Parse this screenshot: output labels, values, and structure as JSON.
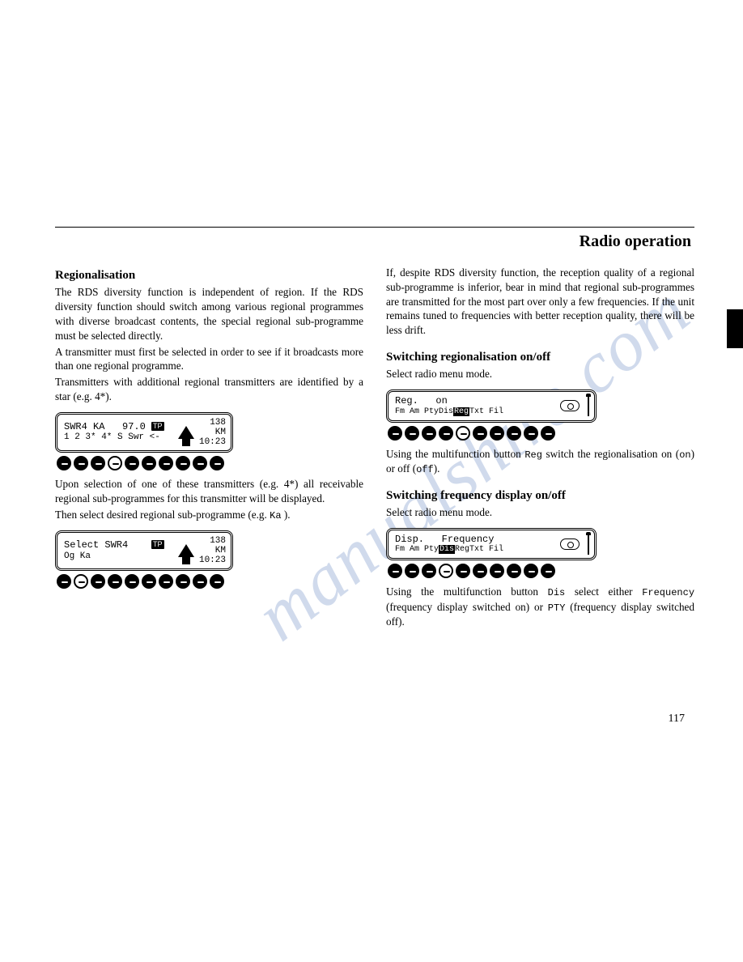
{
  "header": {
    "title": "Radio operation"
  },
  "left": {
    "h1": "Regionalisation",
    "p1": "The RDS diversity function is independent of region. If the RDS diversity function should switch among various regional programmes with diverse broadcast contents, the special regional sub-programme must be selected directly.",
    "p2": "A transmitter must first be selected in order to see if it broadcasts more than one regional programme.",
    "p3": "Transmitters with additional regional transmitters are identified by a star (e.g. 4*).",
    "lcd1": {
      "row1_station": "SWR4 KA",
      "row1_freq": "97.0",
      "row1_tp": "TP",
      "row2": "1  2  3* 4*  S  Swr <-",
      "dist": "138",
      "dist_unit": "KM",
      "time": "10:23",
      "buttons": [
        "solid",
        "solid",
        "solid",
        "hollow",
        "solid",
        "solid",
        "solid",
        "solid",
        "solid",
        "solid"
      ]
    },
    "p4": "Upon selection of one of these transmitters (e.g. 4*) all receivable regional sub-programmes for this transmitter will be displayed.",
    "p5a": "Then select desired regional sub-programme (e.g. ",
    "p5b": "Ka",
    "p5c": ").",
    "lcd2": {
      "row1": "Select SWR4",
      "row1_tp": "TP",
      "row2": "Og Ka",
      "dist": "138",
      "dist_unit": "KM",
      "time": "10:23",
      "buttons": [
        "solid",
        "hollow",
        "solid",
        "solid",
        "solid",
        "solid",
        "solid",
        "solid",
        "solid",
        "solid"
      ]
    }
  },
  "right": {
    "p1": "If, despite RDS diversity function, the reception quality of a regional sub-programme is inferior, bear in mind that regional sub-programmes are transmitted for the most part over only a few frequencies. If the unit remains tuned to frequencies with better reception quality, there will be less drift.",
    "h2": "Switching regionalisation on/off",
    "p2": "Select radio menu mode.",
    "lcd3": {
      "row1a": "Reg.",
      "row1b": "on",
      "menu_pre": "Fm Am PtyDis",
      "menu_sel": "Reg",
      "menu_post": "Txt Fil",
      "buttons": [
        "solid",
        "solid",
        "solid",
        "solid",
        "hollow",
        "solid",
        "solid",
        "solid",
        "solid",
        "solid"
      ]
    },
    "p3a": "Using the multifunction button ",
    "p3b": "Reg",
    "p3c": " switch the regionalisation on (",
    "p3d": "on",
    "p3e": ") or off (",
    "p3f": "off",
    "p3g": ").",
    "h3": "Switching frequency display on/off",
    "p4": "Select radio menu mode.",
    "lcd4": {
      "row1a": "Disp.",
      "row1b": "Frequency",
      "menu_pre": "Fm Am Pty",
      "menu_sel": "Dis",
      "menu_post": "RegTxt Fil",
      "buttons": [
        "solid",
        "solid",
        "solid",
        "hollow",
        "solid",
        "solid",
        "solid",
        "solid",
        "solid",
        "solid"
      ]
    },
    "p5a": "Using the multifunction button ",
    "p5b": "Dis",
    "p5c": " select either ",
    "p5d": "Frequency",
    "p5e": " (frequency display switched on) or ",
    "p5f": "PTY",
    "p5g": " (frequency display switched off)."
  },
  "page_number": "117",
  "watermark": "manualshire.com"
}
